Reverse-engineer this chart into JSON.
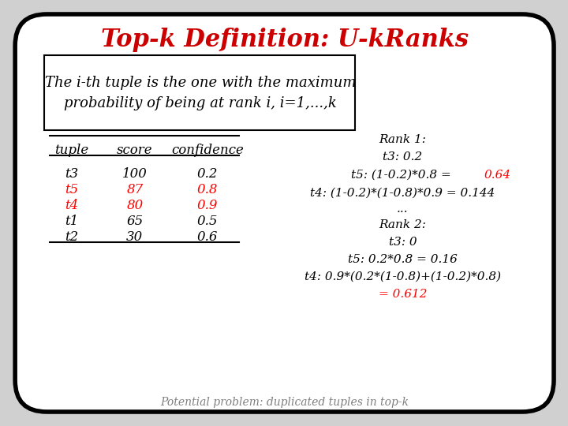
{
  "title": "Top-k Definition: U-kRanks",
  "title_color": "#cc0000",
  "subtitle": "The i-th tuple is the one with the maximum\nprobability of being at rank i, i=1,...,k",
  "table_headers": [
    "tuple",
    "score",
    "confidence"
  ],
  "table_rows": [
    [
      "t3",
      "100",
      "0.2"
    ],
    [
      "t5",
      "87",
      "0.8"
    ],
    [
      "t4",
      "80",
      "0.9"
    ],
    [
      "t1",
      "65",
      "0.5"
    ],
    [
      "t2",
      "30",
      "0.6"
    ]
  ],
  "table_row_colors": [
    "black",
    "red",
    "red",
    "black",
    "black"
  ],
  "right_text_lines": [
    {
      "text": "Rank 1:",
      "color": "black",
      "style": "italic",
      "weight": "normal"
    },
    {
      "text": "t3: 0.2",
      "color": "black",
      "style": "italic",
      "weight": "normal"
    },
    {
      "text": "t5: (1-0.2)*0.8 = ",
      "color": "black",
      "style": "italic",
      "weight": "normal",
      "suffix": "0.64",
      "suffix_color": "red"
    },
    {
      "text": "t4: (1-0.2)*(1-0.8)*0.9 = 0.144",
      "color": "black",
      "style": "italic",
      "weight": "normal"
    },
    {
      "text": "...",
      "color": "black",
      "style": "italic",
      "weight": "normal"
    },
    {
      "text": "Rank 2:",
      "color": "black",
      "style": "italic",
      "weight": "normal"
    },
    {
      "text": "t3: 0",
      "color": "black",
      "style": "italic",
      "weight": "normal"
    },
    {
      "text": "t5: 0.2*0.8 = 0.16",
      "color": "black",
      "style": "italic",
      "weight": "normal"
    },
    {
      "text": "t4: 0.9*(0.2*(1-0.8)+(1-0.2)*0.8)",
      "color": "black",
      "style": "italic",
      "weight": "normal"
    },
    {
      "text": "= 0.612",
      "color": "red",
      "style": "italic",
      "weight": "normal"
    }
  ],
  "footer_text": "Potential problem: duplicated tuples in top-k",
  "bg_color": "#ffffff",
  "outer_bg": "#d0d0d0"
}
